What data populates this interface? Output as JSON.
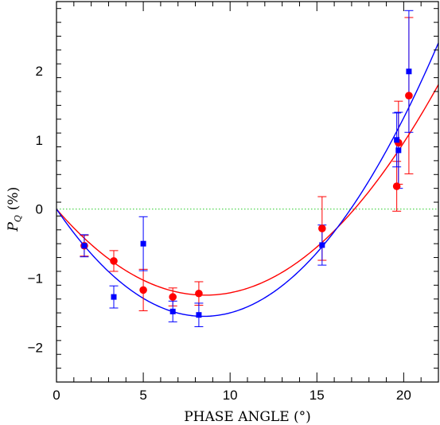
{
  "chart_data": {
    "type": "scatter",
    "xlabel": "PHASE ANGLE (°)",
    "ylabel_main": "P",
    "ylabel_sub": "Q",
    "ylabel_unit": "(%)",
    "xlim": [
      0,
      22
    ],
    "ylim": [
      -2.5,
      3.0
    ],
    "x_ticks": [
      0,
      5,
      10,
      15,
      20
    ],
    "y_ticks": [
      -2,
      -1,
      0,
      1,
      2
    ],
    "x_tick_labels": [
      "0",
      "5",
      "10",
      "15",
      "20"
    ],
    "y_tick_labels": [
      "−2",
      "−1",
      "0",
      "1",
      "2"
    ],
    "reference_line": {
      "y": 0,
      "color": "#22cc22",
      "style": "dotted"
    },
    "series": [
      {
        "marker": "circle",
        "color": "#ff0000",
        "points": [
          {
            "x": 1.6,
            "y": -0.53,
            "err": 0.15
          },
          {
            "x": 3.3,
            "y": -0.75,
            "err": 0.15
          },
          {
            "x": 5.0,
            "y": -1.17,
            "err": 0.3
          },
          {
            "x": 6.7,
            "y": -1.27,
            "err": 0.13
          },
          {
            "x": 8.2,
            "y": -1.22,
            "err": 0.17
          },
          {
            "x": 15.3,
            "y": -0.28,
            "err": 0.46
          },
          {
            "x": 19.6,
            "y": 0.33,
            "err": 0.36
          },
          {
            "x": 19.7,
            "y": 0.96,
            "err": 0.6
          },
          {
            "x": 20.3,
            "y": 1.64,
            "err": 1.13
          }
        ],
        "fit": {
          "a": 0.09,
          "b": -0.08,
          "c": 0.0
        }
      },
      {
        "marker": "square",
        "color": "#0000ff",
        "points": [
          {
            "x": 1.6,
            "y": -0.53,
            "err": 0.16
          },
          {
            "x": 3.3,
            "y": -1.27,
            "err": 0.16
          },
          {
            "x": 5.0,
            "y": -0.5,
            "err": 0.39
          },
          {
            "x": 6.7,
            "y": -1.48,
            "err": 0.15
          },
          {
            "x": 8.2,
            "y": -1.53,
            "err": 0.17
          },
          {
            "x": 15.3,
            "y": -0.52,
            "err": 0.29
          },
          {
            "x": 19.6,
            "y": 1.0,
            "err": 0.39
          },
          {
            "x": 19.7,
            "y": 0.85,
            "err": 0.55
          },
          {
            "x": 20.3,
            "y": 1.99,
            "err": 0.88
          }
        ],
        "fit": {
          "a": 0.094,
          "b": -0.04,
          "c": 0.0
        }
      }
    ]
  }
}
